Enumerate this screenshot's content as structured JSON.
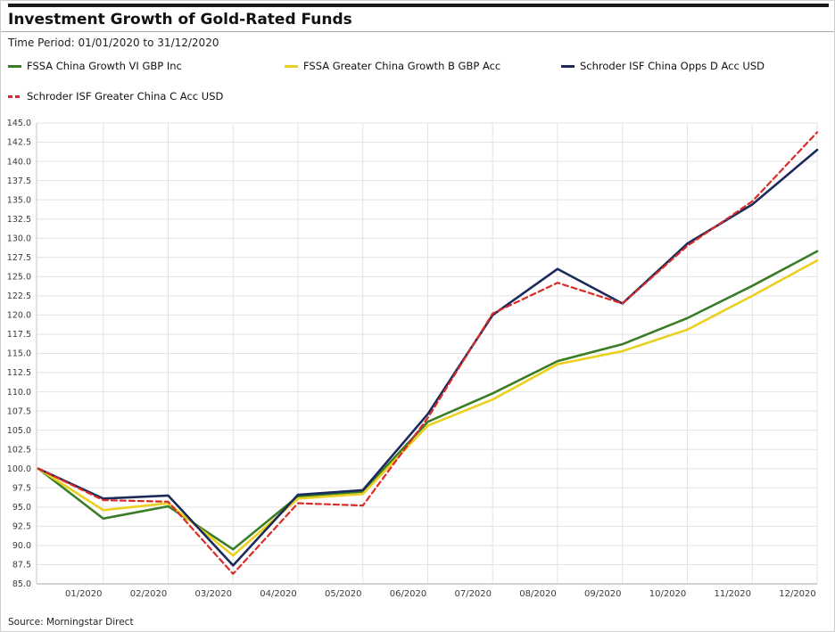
{
  "header": {
    "title": "Investment Growth of Gold-Rated Funds",
    "time_period": "Time Period: 01/01/2020 to 31/12/2020"
  },
  "chart_data": {
    "type": "line",
    "title": "Investment Growth of Gold-Rated Funds",
    "subtitle": "Time Period: 01/01/2020 to 31/12/2020",
    "x_labels": [
      "01/2020",
      "02/2020",
      "03/2020",
      "04/2020",
      "05/2020",
      "06/2020",
      "07/2020",
      "08/2020",
      "09/2020",
      "10/2020",
      "11/2020",
      "12/2020"
    ],
    "y_tick_labels": [
      "145.0",
      "142.5",
      "140.0",
      "137.5",
      "135.0",
      "132.5",
      "130.0",
      "127.5",
      "125.0",
      "122.5",
      "120.0",
      "117.5",
      "115.0",
      "112.5",
      "110.0",
      "107.5",
      "105.0",
      "102.5",
      "100.0",
      "97.5",
      "95.0",
      "92.5",
      "90.0",
      "87.5",
      "85.0"
    ],
    "ylim": [
      85,
      145
    ],
    "ytick_step": 2.5,
    "grid": true,
    "legend_position": "top",
    "point_dates": [
      "01/01/2020",
      "31/01/2020",
      "29/02/2020",
      "31/03/2020",
      "30/04/2020",
      "31/05/2020",
      "30/06/2020",
      "31/07/2020",
      "31/08/2020",
      "30/09/2020",
      "31/10/2020",
      "30/11/2020",
      "31/12/2020"
    ],
    "series": [
      {
        "name": "FSSA China Growth VI GBP Inc",
        "color": "#3a7d26",
        "dash": "solid",
        "values": [
          100,
          93.5,
          95.1,
          89.5,
          96.4,
          97.0,
          106.1,
          109.8,
          114.0,
          116.2,
          119.6,
          123.8,
          128.3
        ]
      },
      {
        "name": "FSSA Greater China Growth B GBP Acc",
        "color": "#ecd01f",
        "dash": "solid",
        "values": [
          100,
          94.6,
          95.5,
          88.7,
          96.1,
          96.7,
          105.6,
          109.0,
          113.6,
          115.3,
          118.1,
          122.5,
          127.1
        ]
      },
      {
        "name": "Schroder ISF China Opps D Acc USD",
        "color": "#1b2a5a",
        "dash": "solid",
        "values": [
          100,
          96.1,
          96.5,
          87.4,
          96.6,
          97.2,
          107.1,
          120.0,
          126.0,
          121.5,
          129.3,
          134.4,
          141.5
        ]
      },
      {
        "name": "Schroder ISF Greater China C Acc USD",
        "color": "#d92b27",
        "dash": "dashed",
        "values": [
          100,
          95.9,
          95.7,
          86.3,
          95.5,
          95.2,
          106.6,
          120.2,
          124.2,
          121.5,
          129.0,
          134.8,
          143.8
        ]
      }
    ]
  },
  "footer": {
    "source": "Source: Morningstar Direct"
  }
}
